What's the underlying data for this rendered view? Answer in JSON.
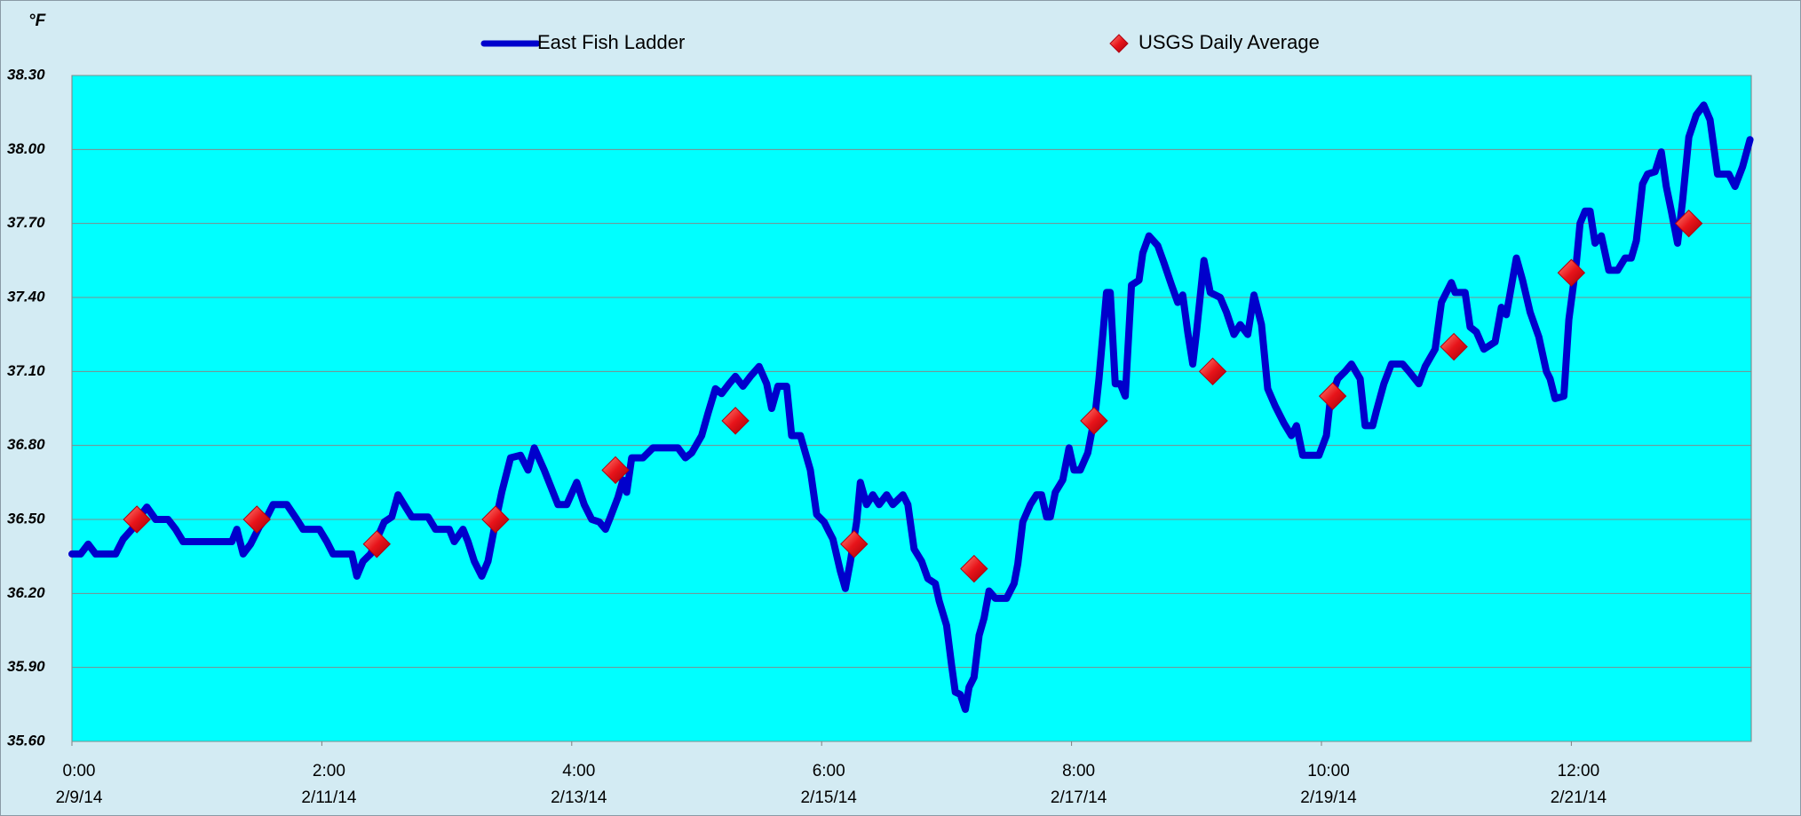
{
  "chart_data": {
    "type": "line",
    "y_unit_label": "°F",
    "xlim": [
      0,
      13.44
    ],
    "ylim": [
      35.6,
      38.3
    ],
    "xticks": [
      {
        "value": 0,
        "label": "0:00"
      },
      {
        "value": 2,
        "label": "2:00"
      },
      {
        "value": 4,
        "label": "4:00"
      },
      {
        "value": 6,
        "label": "6:00"
      },
      {
        "value": 8,
        "label": "8:00"
      },
      {
        "value": 10,
        "label": "10:00"
      },
      {
        "value": 12,
        "label": "12:00"
      }
    ],
    "xtick_dates": [
      "2/9/14",
      "2/11/14",
      "2/13/14",
      "2/15/14",
      "2/17/14",
      "2/19/14",
      "2/21/14"
    ],
    "yticks": [
      {
        "value": 35.6,
        "label": "35.60"
      },
      {
        "value": 35.9,
        "label": "35.90"
      },
      {
        "value": 36.2,
        "label": "36.20"
      },
      {
        "value": 36.5,
        "label": "36.50"
      },
      {
        "value": 36.8,
        "label": "36.80"
      },
      {
        "value": 37.1,
        "label": "37.10"
      },
      {
        "value": 37.4,
        "label": "37.40"
      },
      {
        "value": 37.7,
        "label": "37.70"
      },
      {
        "value": 38.0,
        "label": "38.00"
      },
      {
        "value": 38.3,
        "label": "38.30"
      }
    ],
    "grid": true,
    "legend": "top",
    "series": [
      {
        "name": "East Fish Ladder",
        "type": "line",
        "color": "#0000cc",
        "x": [
          0,
          0.07,
          0.13,
          0.19,
          0.35,
          0.41,
          0.48,
          0.54,
          0.6,
          0.67,
          0.77,
          0.83,
          0.89,
          1.28,
          1.32,
          1.37,
          1.43,
          1.5,
          1.56,
          1.61,
          1.72,
          1.8,
          1.85,
          1.98,
          2.04,
          2.09,
          2.24,
          2.28,
          2.33,
          2.39,
          2.44,
          2.5,
          2.56,
          2.61,
          2.67,
          2.72,
          2.85,
          2.91,
          3.02,
          3.06,
          3.13,
          3.17,
          3.22,
          3.28,
          3.33,
          3.39,
          3.44,
          3.51,
          3.59,
          3.65,
          3.7,
          3.78,
          3.89,
          3.96,
          4.04,
          4.1,
          4.16,
          4.22,
          4.27,
          4.31,
          4.37,
          4.41,
          4.44,
          4.48,
          4.57,
          4.65,
          4.85,
          4.91,
          4.96,
          5.04,
          5.09,
          5.15,
          5.2,
          5.26,
          5.31,
          5.37,
          5.43,
          5.5,
          5.56,
          5.6,
          5.65,
          5.72,
          5.76,
          5.83,
          5.91,
          5.96,
          6.02,
          6.06,
          6.09,
          6.15,
          6.19,
          6.23,
          6.28,
          6.31,
          6.36,
          6.41,
          6.46,
          6.52,
          6.57,
          6.65,
          6.69,
          6.74,
          6.8,
          6.85,
          6.91,
          6.94,
          7.0,
          7.04,
          7.07,
          7.11,
          7.15,
          7.18,
          7.22,
          7.26,
          7.3,
          7.34,
          7.39,
          7.48,
          7.54,
          7.57,
          7.61,
          7.67,
          7.72,
          7.76,
          7.8,
          7.83,
          7.87,
          7.93,
          7.98,
          8.02,
          8.07,
          8.13,
          8.19,
          8.22,
          8.28,
          8.31,
          8.35,
          8.39,
          8.43,
          8.48,
          8.54,
          8.57,
          8.62,
          8.69,
          8.74,
          8.8,
          8.85,
          8.89,
          8.93,
          8.97,
          9.0,
          9.06,
          9.11,
          9.19,
          9.24,
          9.3,
          9.35,
          9.41,
          9.46,
          9.52,
          9.57,
          9.63,
          9.7,
          9.76,
          9.8,
          9.85,
          9.98,
          10.04,
          10.07,
          10.13,
          10.19,
          10.24,
          10.31,
          10.35,
          10.41,
          10.44,
          10.5,
          10.56,
          10.65,
          10.7,
          10.78,
          10.83,
          10.91,
          10.96,
          11.04,
          11.07,
          11.15,
          11.19,
          11.24,
          11.3,
          11.39,
          11.44,
          11.48,
          11.56,
          11.61,
          11.67,
          11.74,
          11.8,
          11.83,
          11.87,
          11.94,
          11.98,
          12.04,
          12.07,
          12.11,
          12.15,
          12.19,
          12.24,
          12.3,
          12.37,
          12.43,
          12.48,
          12.52,
          12.57,
          12.61,
          12.67,
          12.72,
          12.76,
          12.8,
          12.85,
          12.89,
          12.94,
          13.0,
          13.06,
          13.11,
          13.17,
          13.26,
          13.31,
          13.37,
          13.43
        ],
        "values": [
          36.36,
          36.36,
          36.4,
          36.36,
          36.36,
          36.42,
          36.46,
          36.51,
          36.55,
          36.5,
          36.5,
          36.46,
          36.41,
          36.41,
          36.46,
          36.36,
          36.4,
          36.47,
          36.51,
          36.56,
          36.56,
          36.5,
          36.46,
          36.46,
          36.41,
          36.36,
          36.36,
          36.27,
          36.33,
          36.36,
          36.42,
          36.49,
          36.51,
          36.6,
          36.55,
          36.51,
          36.51,
          36.46,
          36.46,
          36.41,
          36.46,
          36.41,
          36.33,
          36.27,
          36.33,
          36.49,
          36.61,
          36.75,
          36.76,
          36.7,
          36.79,
          36.7,
          36.56,
          36.56,
          36.65,
          36.56,
          36.5,
          36.49,
          36.46,
          36.51,
          36.59,
          36.66,
          36.61,
          36.75,
          36.75,
          36.79,
          36.79,
          36.75,
          36.77,
          36.84,
          36.93,
          37.03,
          37.01,
          37.05,
          37.08,
          37.04,
          37.08,
          37.12,
          37.05,
          36.95,
          37.04,
          37.04,
          36.84,
          36.84,
          36.7,
          36.52,
          36.49,
          36.45,
          36.42,
          36.29,
          36.22,
          36.33,
          36.49,
          36.65,
          36.56,
          36.6,
          36.56,
          36.6,
          36.56,
          36.6,
          36.56,
          36.38,
          36.33,
          36.26,
          36.24,
          36.17,
          36.07,
          35.91,
          35.8,
          35.79,
          35.73,
          35.82,
          35.86,
          36.03,
          36.1,
          36.21,
          36.18,
          36.18,
          36.24,
          36.32,
          36.49,
          36.56,
          36.6,
          36.6,
          36.51,
          36.51,
          36.61,
          36.66,
          36.79,
          36.7,
          36.7,
          36.77,
          36.93,
          37.07,
          37.42,
          37.42,
          37.05,
          37.05,
          37.0,
          37.45,
          37.47,
          37.58,
          37.65,
          37.61,
          37.54,
          37.45,
          37.38,
          37.41,
          37.26,
          37.13,
          37.26,
          37.55,
          37.42,
          37.4,
          37.34,
          37.25,
          37.29,
          37.25,
          37.41,
          37.29,
          37.03,
          36.96,
          36.89,
          36.84,
          36.88,
          36.76,
          36.76,
          36.84,
          36.98,
          37.07,
          37.1,
          37.13,
          37.07,
          36.88,
          36.88,
          36.94,
          37.05,
          37.13,
          37.13,
          37.1,
          37.05,
          37.12,
          37.19,
          37.38,
          37.46,
          37.42,
          37.42,
          37.28,
          37.26,
          37.19,
          37.22,
          37.36,
          37.33,
          37.56,
          37.47,
          37.34,
          37.24,
          37.1,
          37.07,
          36.99,
          37.0,
          37.31,
          37.54,
          37.7,
          37.75,
          37.75,
          37.62,
          37.65,
          37.51,
          37.51,
          37.56,
          37.56,
          37.63,
          37.86,
          37.9,
          37.91,
          37.99,
          37.85,
          37.75,
          37.62,
          37.79,
          38.05,
          38.14,
          38.18,
          38.12,
          37.9,
          37.9,
          37.85,
          37.93,
          38.04
        ]
      },
      {
        "name": "USGS Daily Average",
        "type": "scatter",
        "color": "#e8141a",
        "x": [
          0.52,
          1.48,
          2.44,
          3.39,
          4.35,
          5.31,
          6.26,
          7.22,
          8.18,
          9.13,
          10.09,
          11.06,
          12.0,
          12.94
        ],
        "values": [
          36.5,
          36.5,
          36.4,
          36.5,
          36.7,
          36.9,
          36.4,
          36.3,
          36.9,
          37.1,
          37.0,
          37.2,
          37.5,
          37.7
        ]
      }
    ]
  }
}
